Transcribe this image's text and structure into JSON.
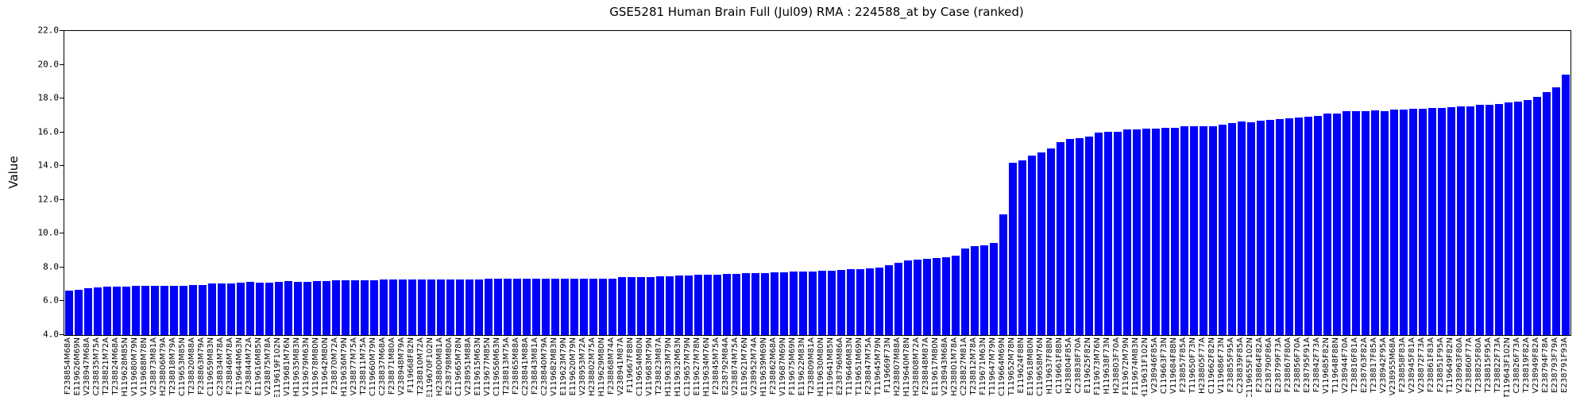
{
  "chart_data": {
    "type": "bar",
    "title": "GSE5281 Human Brain Full (Jul09) RMA : 224588_at by Case (ranked)",
    "xlabel": "",
    "ylabel": "Value",
    "ylim": [
      4.0,
      22.0
    ],
    "ytick_labels": [
      "4.0",
      "6.0",
      "8.0",
      "10.0",
      "12.0",
      "14.0",
      "16.0",
      "18.0",
      "20.0",
      "22.0"
    ],
    "grid": false,
    "legend": "none",
    "bar_color": "#0000ff",
    "categories": [
      "F238854M68A",
      "E119626M69N",
      "V238947M68A",
      "C238835M75A",
      "T238821M72A",
      "T238824M68A",
      "H119628M85N",
      "V119680M79N",
      "V119688M78N",
      "V238873M81A",
      "H238806M79A",
      "T238818M79A",
      "C119653M85N",
      "T238820M88A",
      "F238863M79A",
      "C119659M83N",
      "C238834M78A",
      "F238846M78A",
      "T119644M63N",
      "F238844M72A",
      "E119616M85N",
      "V238875M78A",
      "E119619F102N",
      "V119681M76N",
      "H119635M83N",
      "V119679M63N",
      "V119678M80N",
      "T119642M80N",
      "F238870M72A",
      "H119636M79N",
      "V238877M75A",
      "T238811M75A",
      "C119660M79N",
      "C238837M68A",
      "F238871M80A",
      "V238948M79A",
      "F119668F82N",
      "T238810M72A",
      "E119670F102N",
      "H238800M81A",
      "E238798M80A",
      "C119665M78N",
      "V238951M88A",
      "E119615M63N",
      "V119677M85N",
      "C119656M63N",
      "T238813M75A",
      "F238865M88A",
      "C238841M88A",
      "F238843M81A",
      "C238840M79A",
      "V119682M83N",
      "E119623M79N",
      "E119620M79N",
      "V238953M72A",
      "H238802M75A",
      "H119629M80N",
      "F238868M74A",
      "V238941M87A",
      "F119667F88N",
      "C119654M80N",
      "V119683M79N",
      "T238823M87A",
      "H119633M79N",
      "H119632M63N",
      "C119657M79N",
      "E119627M78N",
      "H119634M76N",
      "F238845M75A",
      "E238792M84A",
      "V238874M75A",
      "E119621M76N",
      "V238952M74A",
      "H119639M69N",
      "F238862M68A",
      "V119687M69N",
      "F119675M69N",
      "E119622M83N",
      "T238809M81A",
      "H119630M80N",
      "T119641M85N",
      "E238796M86A",
      "T119646M83N",
      "T119651M69N",
      "F238847M75A",
      "T119645M79N",
      "F119669F73N",
      "H238807M88A",
      "H119640M78N",
      "H238808M72A",
      "F238848M87A",
      "E119617M80N",
      "V238943M68A",
      "H238801M78A",
      "C238827M81A",
      "T238812M78A",
      "F119671M63N",
      "T119647M79N",
      "C119664M69N",
      "T119652M78N",
      "E119624F88N",
      "E119618M80N",
      "C119658M76N",
      "H119637F88N",
      "C119661F88N",
      "H238804F85A",
      "C238838F70A",
      "E119625F82N",
      "F119673M76N",
      "H119638F73N",
      "H238803F70A",
      "F119672M79N",
      "F119674M83N",
      "H119631F102N",
      "V238946F85A",
      "C119663F73N",
      "V119684F88N",
      "F238857F85A",
      "T119650F73N",
      "H238805F77A",
      "C119662F82N",
      "V119686F73N",
      "F238855F95A",
      "C238839F85A",
      "C119655F102N",
      "F238864F82A",
      "E238790F86A",
      "E238799F73A",
      "F238867F80A",
      "F238856F70A",
      "E238795F91A",
      "F238842F73A",
      "V119685F82N",
      "T119648F88N",
      "V238944F70A",
      "T238816F81A",
      "E238763F82A",
      "T238817F85A",
      "V238942F95A",
      "V238955M68A",
      "F238858F83A",
      "V238945F81A",
      "V238872F73A",
      "F238861F83A",
      "F238851F95A",
      "T119649F82N",
      "V238963F80A",
      "F238860F77A",
      "T238825F80A",
      "T238815F95A",
      "T238822F73A",
      "T119643F102N",
      "C238826F73A",
      "T238819F82A",
      "V238949F82A",
      "E238794F78A",
      "E238793F79A",
      "E238791F93A"
    ],
    "values": [
      6.63,
      6.7,
      6.77,
      6.82,
      6.87,
      6.87,
      6.87,
      6.91,
      6.93,
      6.93,
      6.91,
      6.93,
      6.91,
      6.98,
      6.98,
      7.07,
      7.07,
      7.06,
      7.12,
      7.13,
      7.12,
      7.12,
      7.17,
      7.18,
      7.15,
      7.16,
      7.2,
      7.22,
      7.24,
      7.24,
      7.25,
      7.26,
      7.26,
      7.27,
      7.28,
      7.28,
      7.28,
      7.29,
      7.3,
      7.3,
      7.3,
      7.31,
      7.31,
      7.31,
      7.32,
      7.32,
      7.32,
      7.32,
      7.33,
      7.33,
      7.33,
      7.34,
      7.34,
      7.35,
      7.35,
      7.33,
      7.34,
      7.35,
      7.42,
      7.42,
      7.43,
      7.44,
      7.48,
      7.5,
      7.52,
      7.53,
      7.55,
      7.57,
      7.59,
      7.6,
      7.63,
      7.65,
      7.67,
      7.68,
      7.7,
      7.73,
      7.74,
      7.75,
      7.76,
      7.79,
      7.8,
      7.86,
      7.88,
      7.92,
      7.97,
      8.0,
      8.12,
      8.28,
      8.4,
      8.45,
      8.5,
      8.55,
      8.59,
      8.7,
      9.1,
      9.25,
      9.31,
      9.44,
      11.13,
      14.22,
      14.33,
      14.64,
      14.81,
      15.05,
      15.41,
      15.61,
      15.66,
      15.73,
      15.98,
      16.04,
      16.01,
      16.16,
      16.16,
      16.22,
      16.21,
      16.29,
      16.27,
      16.34,
      16.34,
      16.38,
      16.38,
      16.45,
      16.56,
      16.64,
      16.61,
      16.68,
      16.75,
      16.79,
      16.84,
      16.9,
      16.92,
      16.96,
      17.12,
      17.11,
      17.25,
      17.24,
      17.24,
      17.28,
      17.27,
      17.34,
      17.33,
      17.39,
      17.39,
      17.43,
      17.45,
      17.49,
      17.55,
      17.55,
      17.64,
      17.64,
      17.7,
      17.78,
      17.8,
      17.9,
      18.1,
      18.39,
      18.67,
      19.41
    ]
  }
}
